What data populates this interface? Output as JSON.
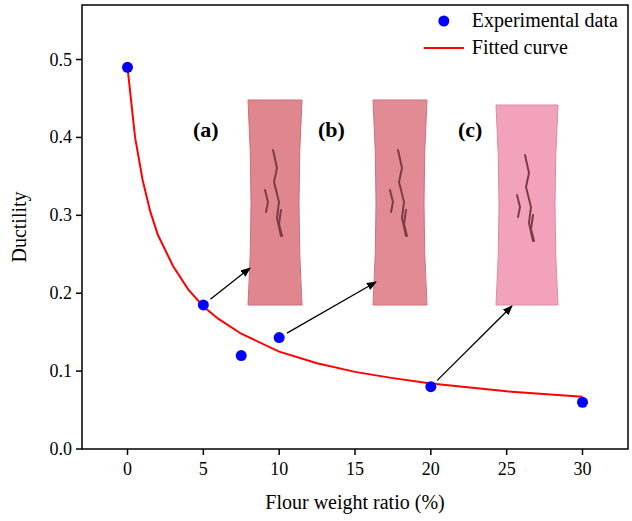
{
  "chart_data": {
    "type": "scatter",
    "x_label": "Flour weight ratio (%)",
    "y_label": "Ductility",
    "xlim": [
      -3,
      33
    ],
    "ylim": [
      0,
      0.57
    ],
    "xticks": [
      0,
      5,
      10,
      15,
      20,
      25,
      30
    ],
    "yticks": [
      {
        "value": 0,
        "label": "0.0"
      },
      {
        "value": 0.1,
        "label": "0.1"
      },
      {
        "value": 0.2,
        "label": "0.2"
      },
      {
        "value": 0.3,
        "label": "0.3"
      },
      {
        "value": 0.4,
        "label": "0.4"
      },
      {
        "value": 0.5,
        "label": "0.5"
      }
    ],
    "grid": false,
    "legend": "upper right",
    "series": [
      {
        "name": "Experimental data",
        "type": "scatter",
        "color": "#0000ff",
        "marker": "circle",
        "x": [
          0,
          5,
          7.5,
          10,
          20,
          30
        ],
        "values": [
          0.49,
          0.185,
          0.12,
          0.143,
          0.08,
          0.06
        ]
      },
      {
        "name": "Fitted curve",
        "type": "line",
        "color": "#ff0000",
        "line_style": "solid",
        "x": [
          0,
          0.5,
          1,
          1.5,
          2,
          3,
          4,
          5,
          6,
          7.5,
          10,
          12.5,
          15,
          17.5,
          20,
          25,
          30
        ],
        "values": [
          0.49,
          0.4,
          0.345,
          0.305,
          0.275,
          0.235,
          0.205,
          0.183,
          0.167,
          0.148,
          0.125,
          0.11,
          0.099,
          0.091,
          0.084,
          0.074,
          0.067
        ]
      }
    ],
    "annotations": [
      "(a)",
      "(b)",
      "(c)"
    ]
  }
}
